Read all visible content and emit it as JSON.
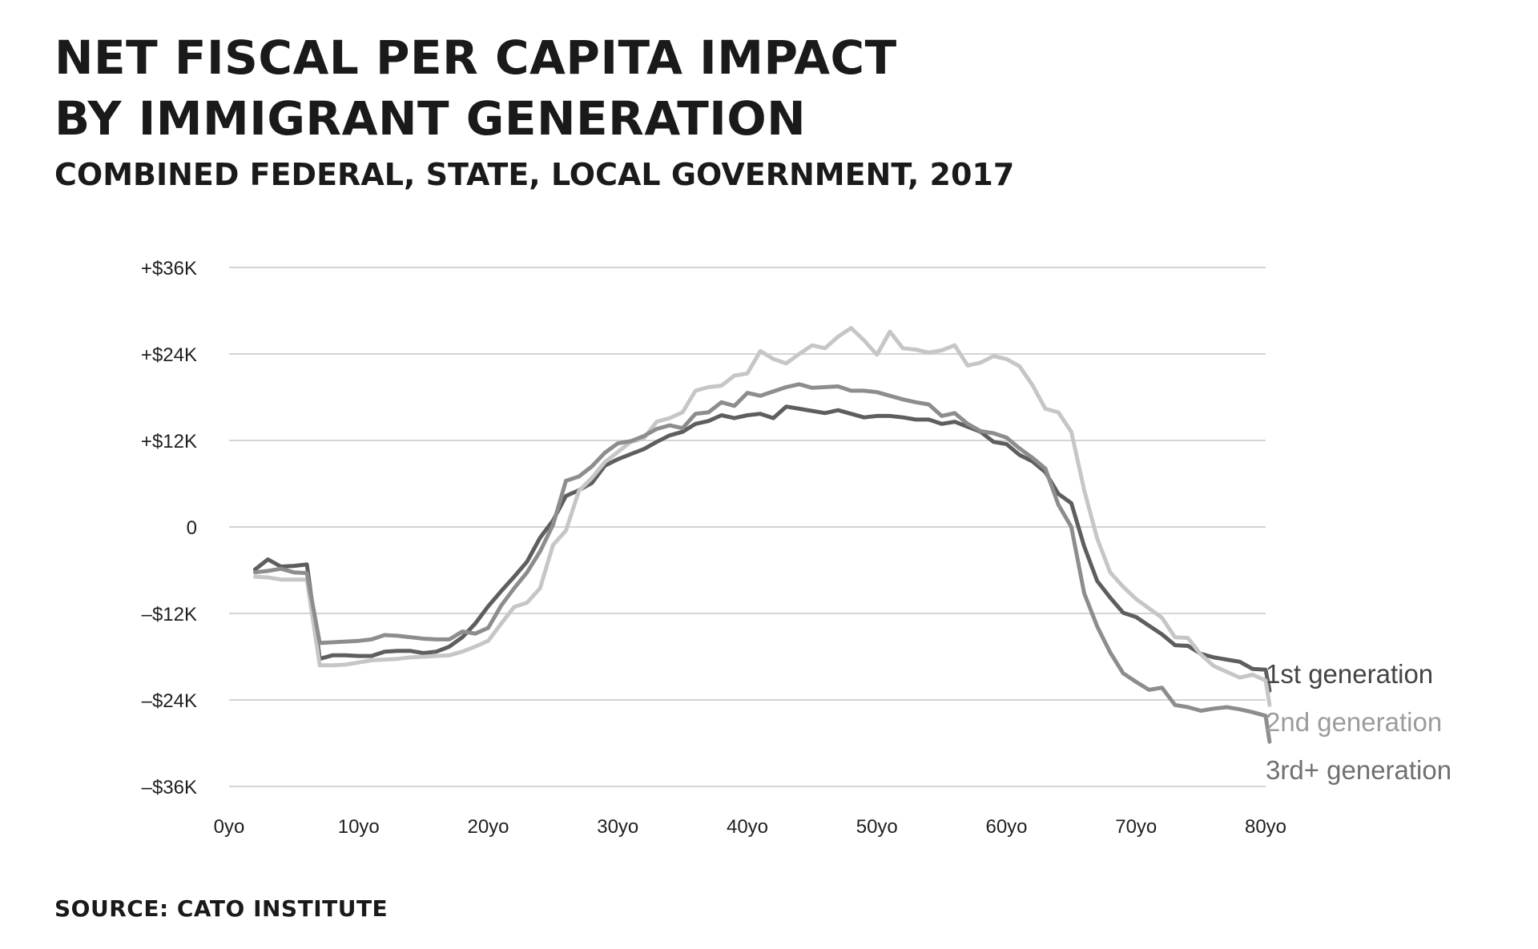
{
  "title_line1": "NET FISCAL PER CAPITA IMPACT",
  "title_line2": "BY IMMIGRANT GENERATION",
  "subtitle": "COMBINED FEDERAL, STATE, LOCAL GOVERNMENT, 2017",
  "source": "SOURCE: CATO INSTITUTE",
  "colors": {
    "gridline": "#d4d4d4",
    "text": "#1f1f1f",
    "first_generation": "#5e5e5e",
    "second_generation": "#c6c6c6",
    "third_generation": "#8d8d8d",
    "label_first": "#444444",
    "label_second": "#9c9c9c",
    "label_third": "#707070"
  },
  "chart_data": {
    "type": "line",
    "title": "NET FISCAL PER CAPITA IMPACT BY IMMIGRANT GENERATION",
    "subtitle": "COMBINED FEDERAL, STATE, LOCAL GOVERNMENT, 2017",
    "xlabel": "",
    "ylabel": "",
    "xlim": [
      0,
      80
    ],
    "ylim": [
      -36000,
      36000
    ],
    "grid": true,
    "legend": "inline labels at right end of lines",
    "y_ticks": [
      {
        "value": 36000,
        "label": "+$36K"
      },
      {
        "value": 24000,
        "label": "+$24K"
      },
      {
        "value": 12000,
        "label": "+$12K"
      },
      {
        "value": 0,
        "label": "0"
      },
      {
        "value": -12000,
        "label": "–$12K"
      },
      {
        "value": -24000,
        "label": "–$24K"
      },
      {
        "value": -36000,
        "label": "–$36K"
      }
    ],
    "x_ticks": [
      {
        "value": 0,
        "label": "0yo"
      },
      {
        "value": 10,
        "label": "10yo"
      },
      {
        "value": 20,
        "label": "20yo"
      },
      {
        "value": 30,
        "label": "30yo"
      },
      {
        "value": 40,
        "label": "40yo"
      },
      {
        "value": 50,
        "label": "50yo"
      },
      {
        "value": 60,
        "label": "60yo"
      },
      {
        "value": 70,
        "label": "70yo"
      },
      {
        "value": 80,
        "label": "80yo"
      }
    ],
    "series": [
      {
        "name": "1st generation",
        "color_key": "first_generation",
        "label_color_key": "label_first",
        "points": [
          [
            2,
            -5900
          ],
          [
            3,
            -4500
          ],
          [
            4,
            -5500
          ],
          [
            5,
            -5400
          ],
          [
            6,
            -5200
          ],
          [
            7,
            -18300
          ],
          [
            8,
            -17800
          ],
          [
            9,
            -17800
          ],
          [
            10,
            -17900
          ],
          [
            11,
            -17900
          ],
          [
            12,
            -17300
          ],
          [
            13,
            -17200
          ],
          [
            14,
            -17200
          ],
          [
            15,
            -17500
          ],
          [
            16,
            -17300
          ],
          [
            17,
            -16600
          ],
          [
            18,
            -15300
          ],
          [
            19,
            -13400
          ],
          [
            20,
            -11000
          ],
          [
            21,
            -8900
          ],
          [
            22,
            -6900
          ],
          [
            23,
            -4800
          ],
          [
            24,
            -1500
          ],
          [
            25,
            900
          ],
          [
            26,
            4300
          ],
          [
            27,
            5100
          ],
          [
            28,
            6100
          ],
          [
            29,
            8500
          ],
          [
            30,
            9400
          ],
          [
            31,
            10100
          ],
          [
            32,
            10800
          ],
          [
            33,
            11800
          ],
          [
            34,
            12700
          ],
          [
            35,
            13200
          ],
          [
            36,
            14300
          ],
          [
            37,
            14700
          ],
          [
            38,
            15500
          ],
          [
            39,
            15100
          ],
          [
            40,
            15500
          ],
          [
            41,
            15700
          ],
          [
            42,
            15100
          ],
          [
            43,
            16700
          ],
          [
            44,
            16400
          ],
          [
            45,
            16100
          ],
          [
            46,
            15800
          ],
          [
            47,
            16200
          ],
          [
            48,
            15700
          ],
          [
            49,
            15200
          ],
          [
            50,
            15400
          ],
          [
            51,
            15400
          ],
          [
            52,
            15200
          ],
          [
            53,
            14900
          ],
          [
            54,
            14900
          ],
          [
            55,
            14300
          ],
          [
            56,
            14600
          ],
          [
            57,
            13900
          ],
          [
            58,
            13200
          ],
          [
            59,
            11800
          ],
          [
            60,
            11500
          ],
          [
            61,
            10000
          ],
          [
            62,
            9100
          ],
          [
            63,
            7600
          ],
          [
            64,
            4600
          ],
          [
            65,
            3300
          ],
          [
            66,
            -2700
          ],
          [
            67,
            -7500
          ],
          [
            68,
            -9800
          ],
          [
            69,
            -11900
          ],
          [
            70,
            -12500
          ],
          [
            71,
            -13700
          ],
          [
            72,
            -14900
          ],
          [
            73,
            -16400
          ],
          [
            74,
            -16500
          ],
          [
            75,
            -17600
          ],
          [
            76,
            -18100
          ],
          [
            77,
            -18400
          ],
          [
            78,
            -18700
          ],
          [
            79,
            -19700
          ],
          [
            80,
            -19800
          ],
          [
            80.3,
            -22700
          ]
        ]
      },
      {
        "name": "2nd generation",
        "color_key": "second_generation",
        "label_color_key": "label_second",
        "points": [
          [
            2,
            -6900
          ],
          [
            3,
            -7000
          ],
          [
            4,
            -7300
          ],
          [
            5,
            -7300
          ],
          [
            6,
            -7300
          ],
          [
            7,
            -19200
          ],
          [
            8,
            -19200
          ],
          [
            9,
            -19100
          ],
          [
            10,
            -18800
          ],
          [
            11,
            -18500
          ],
          [
            12,
            -18400
          ],
          [
            13,
            -18300
          ],
          [
            14,
            -18100
          ],
          [
            15,
            -18000
          ],
          [
            16,
            -17900
          ],
          [
            17,
            -17800
          ],
          [
            18,
            -17300
          ],
          [
            19,
            -16600
          ],
          [
            20,
            -15800
          ],
          [
            21,
            -13400
          ],
          [
            22,
            -11100
          ],
          [
            23,
            -10500
          ],
          [
            24,
            -8500
          ],
          [
            25,
            -2500
          ],
          [
            26,
            -500
          ],
          [
            27,
            5000
          ],
          [
            28,
            6800
          ],
          [
            29,
            9000
          ],
          [
            30,
            10400
          ],
          [
            31,
            11800
          ],
          [
            32,
            12300
          ],
          [
            33,
            14600
          ],
          [
            34,
            15100
          ],
          [
            35,
            15900
          ],
          [
            36,
            18900
          ],
          [
            37,
            19400
          ],
          [
            38,
            19600
          ],
          [
            39,
            21000
          ],
          [
            40,
            21300
          ],
          [
            41,
            24400
          ],
          [
            42,
            23300
          ],
          [
            43,
            22700
          ],
          [
            44,
            24000
          ],
          [
            45,
            25200
          ],
          [
            46,
            24800
          ],
          [
            47,
            26400
          ],
          [
            48,
            27600
          ],
          [
            49,
            25900
          ],
          [
            50,
            23900
          ],
          [
            51,
            27100
          ],
          [
            52,
            24800
          ],
          [
            53,
            24600
          ],
          [
            54,
            24200
          ],
          [
            55,
            24500
          ],
          [
            56,
            25200
          ],
          [
            57,
            22400
          ],
          [
            58,
            22800
          ],
          [
            59,
            23700
          ],
          [
            60,
            23300
          ],
          [
            61,
            22300
          ],
          [
            62,
            19700
          ],
          [
            63,
            16400
          ],
          [
            64,
            15900
          ],
          [
            65,
            13200
          ],
          [
            66,
            5100
          ],
          [
            67,
            -1600
          ],
          [
            68,
            -6300
          ],
          [
            69,
            -8300
          ],
          [
            70,
            -10000
          ],
          [
            71,
            -11300
          ],
          [
            72,
            -12600
          ],
          [
            73,
            -15300
          ],
          [
            74,
            -15400
          ],
          [
            75,
            -17700
          ],
          [
            76,
            -19300
          ],
          [
            77,
            -20100
          ],
          [
            78,
            -20900
          ],
          [
            79,
            -20500
          ],
          [
            80,
            -21300
          ],
          [
            80.3,
            -24700
          ]
        ]
      },
      {
        "name": "3rd+ generation",
        "color_key": "third_generation",
        "label_color_key": "label_third",
        "points": [
          [
            2,
            -6300
          ],
          [
            3,
            -6100
          ],
          [
            4,
            -5800
          ],
          [
            5,
            -6300
          ],
          [
            6,
            -6400
          ],
          [
            7,
            -16100
          ],
          [
            8,
            -16000
          ],
          [
            9,
            -15900
          ],
          [
            10,
            -15800
          ],
          [
            11,
            -15600
          ],
          [
            12,
            -15000
          ],
          [
            13,
            -15100
          ],
          [
            14,
            -15300
          ],
          [
            15,
            -15500
          ],
          [
            16,
            -15600
          ],
          [
            17,
            -15600
          ],
          [
            18,
            -14500
          ],
          [
            19,
            -14800
          ],
          [
            20,
            -14000
          ],
          [
            21,
            -10900
          ],
          [
            22,
            -8500
          ],
          [
            23,
            -6300
          ],
          [
            24,
            -3400
          ],
          [
            25,
            300
          ],
          [
            26,
            6400
          ],
          [
            27,
            7000
          ],
          [
            28,
            8400
          ],
          [
            29,
            10300
          ],
          [
            30,
            11600
          ],
          [
            31,
            11900
          ],
          [
            32,
            12600
          ],
          [
            33,
            13600
          ],
          [
            34,
            14100
          ],
          [
            35,
            13700
          ],
          [
            36,
            15700
          ],
          [
            37,
            15900
          ],
          [
            38,
            17300
          ],
          [
            39,
            16800
          ],
          [
            40,
            18600
          ],
          [
            41,
            18200
          ],
          [
            42,
            18800
          ],
          [
            43,
            19400
          ],
          [
            44,
            19800
          ],
          [
            45,
            19300
          ],
          [
            46,
            19400
          ],
          [
            47,
            19500
          ],
          [
            48,
            18900
          ],
          [
            49,
            18900
          ],
          [
            50,
            18700
          ],
          [
            51,
            18200
          ],
          [
            52,
            17700
          ],
          [
            53,
            17300
          ],
          [
            54,
            17000
          ],
          [
            55,
            15400
          ],
          [
            56,
            15800
          ],
          [
            57,
            14300
          ],
          [
            58,
            13300
          ],
          [
            59,
            13000
          ],
          [
            60,
            12400
          ],
          [
            61,
            10900
          ],
          [
            62,
            9600
          ],
          [
            63,
            8100
          ],
          [
            64,
            3100
          ],
          [
            65,
            0
          ],
          [
            66,
            -9200
          ],
          [
            67,
            -13800
          ],
          [
            68,
            -17400
          ],
          [
            69,
            -20300
          ],
          [
            70,
            -21500
          ],
          [
            71,
            -22600
          ],
          [
            72,
            -22300
          ],
          [
            73,
            -24700
          ],
          [
            74,
            -25000
          ],
          [
            75,
            -25500
          ],
          [
            76,
            -25200
          ],
          [
            77,
            -25000
          ],
          [
            78,
            -25300
          ],
          [
            79,
            -25700
          ],
          [
            80,
            -26200
          ],
          [
            80.3,
            -29800
          ]
        ]
      }
    ]
  }
}
